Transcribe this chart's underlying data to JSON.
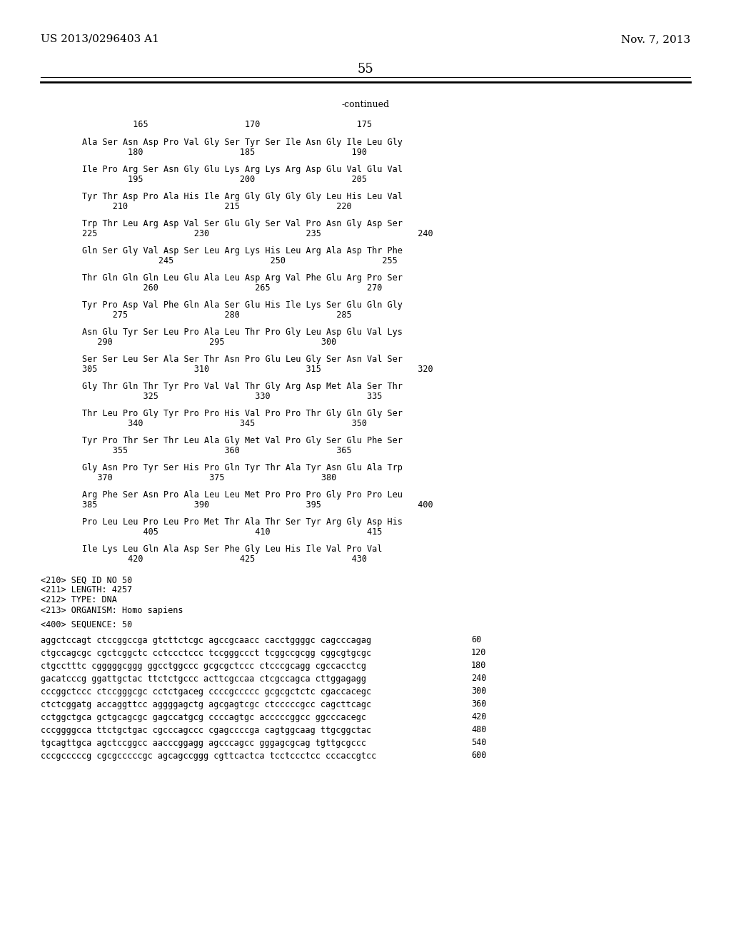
{
  "header_left": "US 2013/0296403 A1",
  "header_right": "Nov. 7, 2013",
  "page_number": "55",
  "continued_label": "-continued",
  "background_color": "#ffffff",
  "text_color": "#000000",
  "sequence_lines": [
    {
      "type": "ruler",
      "text": "          165                   170                   175"
    },
    {
      "type": "aa",
      "text": "Ala Ser Asn Asp Pro Val Gly Ser Tyr Ser Ile Asn Gly Ile Leu Gly"
    },
    {
      "type": "num",
      "text": "         180                   185                   190"
    },
    {
      "type": "aa",
      "text": "Ile Pro Arg Ser Asn Gly Glu Lys Arg Lys Arg Asp Glu Val Glu Val"
    },
    {
      "type": "num",
      "text": "         195                   200                   205"
    },
    {
      "type": "aa",
      "text": "Tyr Thr Asp Pro Ala His Ile Arg Gly Gly Gly Gly Leu His Leu Val"
    },
    {
      "type": "num",
      "text": "      210                   215                   220"
    },
    {
      "type": "aa",
      "text": "Trp Thr Leu Arg Asp Val Ser Glu Gly Ser Val Pro Asn Gly Asp Ser"
    },
    {
      "type": "num",
      "text": "225                   230                   235                   240"
    },
    {
      "type": "aa",
      "text": "Gln Ser Gly Val Asp Ser Leu Arg Lys His Leu Arg Ala Asp Thr Phe"
    },
    {
      "type": "num",
      "text": "               245                   250                   255"
    },
    {
      "type": "aa",
      "text": "Thr Gln Gln Gln Leu Glu Ala Leu Asp Arg Val Phe Glu Arg Pro Ser"
    },
    {
      "type": "num",
      "text": "            260                   265                   270"
    },
    {
      "type": "aa",
      "text": "Tyr Pro Asp Val Phe Gln Ala Ser Glu His Ile Lys Ser Glu Gln Gly"
    },
    {
      "type": "num",
      "text": "      275                   280                   285"
    },
    {
      "type": "aa",
      "text": "Asn Glu Tyr Ser Leu Pro Ala Leu Thr Pro Gly Leu Asp Glu Val Lys"
    },
    {
      "type": "num",
      "text": "   290                   295                   300"
    },
    {
      "type": "aa",
      "text": "Ser Ser Leu Ser Ala Ser Thr Asn Pro Glu Leu Gly Ser Asn Val Ser"
    },
    {
      "type": "num",
      "text": "305                   310                   315                   320"
    },
    {
      "type": "aa",
      "text": "Gly Thr Gln Thr Tyr Pro Val Val Thr Gly Arg Asp Met Ala Ser Thr"
    },
    {
      "type": "num",
      "text": "            325                   330                   335"
    },
    {
      "type": "aa",
      "text": "Thr Leu Pro Gly Tyr Pro Pro His Val Pro Pro Thr Gly Gln Gly Ser"
    },
    {
      "type": "num",
      "text": "         340                   345                   350"
    },
    {
      "type": "aa",
      "text": "Tyr Pro Thr Ser Thr Leu Ala Gly Met Val Pro Gly Ser Glu Phe Ser"
    },
    {
      "type": "num",
      "text": "      355                   360                   365"
    },
    {
      "type": "aa",
      "text": "Gly Asn Pro Tyr Ser His Pro Gln Tyr Thr Ala Tyr Asn Glu Ala Trp"
    },
    {
      "type": "num",
      "text": "   370                   375                   380"
    },
    {
      "type": "aa",
      "text": "Arg Phe Ser Asn Pro Ala Leu Leu Met Pro Pro Pro Gly Pro Pro Leu"
    },
    {
      "type": "num",
      "text": "385                   390                   395                   400"
    },
    {
      "type": "aa",
      "text": "Pro Leu Leu Pro Leu Pro Met Thr Ala Thr Ser Tyr Arg Gly Asp His"
    },
    {
      "type": "num",
      "text": "            405                   410                   415"
    },
    {
      "type": "aa",
      "text": "Ile Lys Leu Gln Ala Asp Ser Phe Gly Leu His Ile Val Pro Val"
    },
    {
      "type": "num",
      "text": "         420                   425                   430"
    }
  ],
  "meta_lines": [
    "<210> SEQ ID NO 50",
    "<211> LENGTH: 4257",
    "<212> TYPE: DNA",
    "<213> ORGANISM: Homo sapiens"
  ],
  "seq400_label": "<400> SEQUENCE: 50",
  "dna_lines": [
    {
      "seq": "aggctccagt ctccggccga gtcttctcgc agccgcaacc cacctggggc cagcccagag",
      "num": "60"
    },
    {
      "seq": "ctgccagcgc cgctcggctc cctccctccc tccgggccct tcggccgcgg cggcgtgcgc",
      "num": "120"
    },
    {
      "seq": "ctgcctttc cgggggcggg ggcctggccc gcgcgctccc ctcccgcagg cgccacctcg",
      "num": "180"
    },
    {
      "seq": "gacatcccg ggattgctac ttctctgccc acttcgccaa ctcgccagca cttggagagg",
      "num": "240"
    },
    {
      "seq": "cccggctccc ctccgggcgc cctctgaceg ccccgccccc gcgcgctctc cgaccacegc",
      "num": "300"
    },
    {
      "seq": "ctctcggatg accaggttcc aggggagctg agcgagtcgc ctcccccgcc cagcttcagc",
      "num": "360"
    },
    {
      "seq": "cctggctgca gctgcagcgc gagccatgcg ccccagtgc acccccggcc ggcccacegc",
      "num": "420"
    },
    {
      "seq": "cccggggcca ttctgctgac cgcccagccc cgagccccga cagtggcaag ttgcggctac",
      "num": "480"
    },
    {
      "seq": "tgcagttgca agctccggcc aacccggagg agcccagcc gggagcgcag tgttgcgccc",
      "num": "540"
    },
    {
      "seq": "cccgcccccg cgcgcccccgc agcagccggg cgttcactca tcctccctcc cccaccgtcc",
      "num": "600"
    }
  ]
}
